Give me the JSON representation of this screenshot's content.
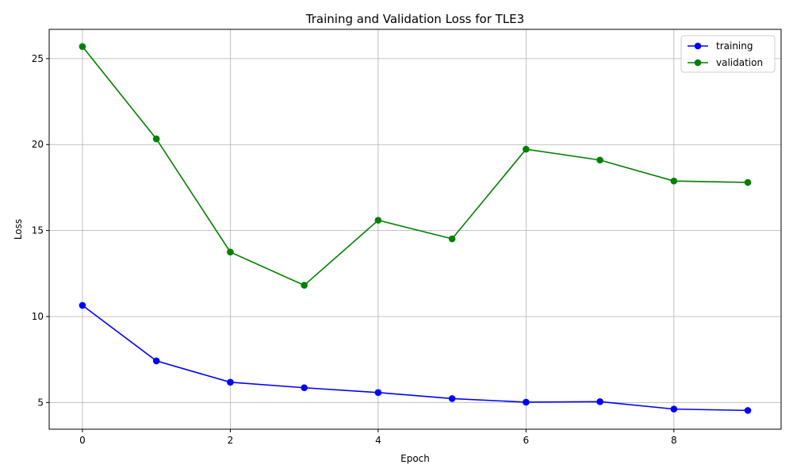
{
  "chart_data": {
    "type": "line",
    "title": "Training and Validation Loss for TLE3",
    "xlabel": "Epoch",
    "ylabel": "Loss",
    "x": [
      0,
      1,
      2,
      3,
      4,
      5,
      6,
      7,
      8,
      9
    ],
    "xlim": [
      -0.45,
      9.45
    ],
    "ylim": [
      3.45,
      26.7
    ],
    "xticks": [
      0,
      2,
      4,
      6,
      8
    ],
    "yticks": [
      5,
      10,
      15,
      20,
      25
    ],
    "grid": true,
    "legend_position": "top-right",
    "series": [
      {
        "name": "training",
        "color": "#0000ff",
        "marker": "circle",
        "values": [
          10.65,
          7.42,
          6.18,
          5.86,
          5.58,
          5.23,
          5.02,
          5.05,
          4.62,
          4.54
        ]
      },
      {
        "name": "validation",
        "color": "#008000",
        "marker": "circle",
        "values": [
          25.7,
          20.33,
          13.75,
          11.82,
          15.6,
          14.52,
          19.73,
          19.1,
          17.88,
          17.8
        ]
      }
    ]
  }
}
